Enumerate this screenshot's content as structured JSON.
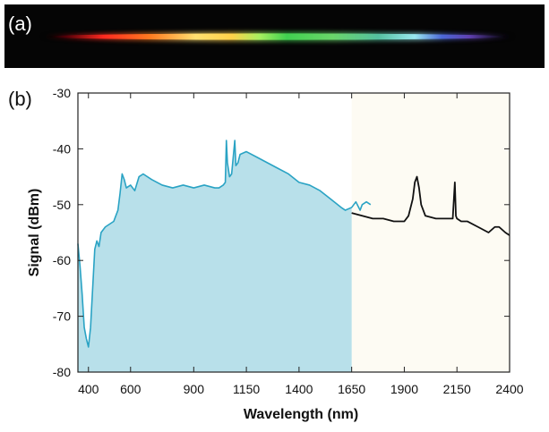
{
  "panel_a": {
    "label": "(a)"
  },
  "panel_b": {
    "label": "(b)"
  },
  "colors": {
    "fill_left": "#b8e0ea",
    "fill_right": "#fdfbf3",
    "series_visible": "#2aa3c4",
    "series_ir": "#111111",
    "frame": "#222222"
  },
  "chart_data": {
    "type": "line",
    "xlabel": "Wavelength (nm)",
    "ylabel": "Signal (dBm)",
    "xlim": [
      350,
      2400
    ],
    "ylim": [
      -80,
      -30
    ],
    "xticks": [
      400,
      600,
      900,
      1150,
      1400,
      1650,
      1900,
      2150,
      2400
    ],
    "yticks": [
      -30,
      -40,
      -50,
      -60,
      -70,
      -80
    ],
    "shaded_region_boundary_x": 1650,
    "series": [
      {
        "x": [
          350,
          360,
          370,
          380,
          390,
          400,
          410,
          420,
          430,
          440,
          450,
          460,
          470,
          480,
          500,
          520,
          540,
          550,
          560,
          570,
          580,
          600,
          620,
          640,
          660,
          700,
          750,
          800,
          850,
          900,
          950,
          1000,
          1020,
          1040,
          1050,
          1055,
          1060,
          1070,
          1080,
          1090,
          1095,
          1100,
          1110,
          1120,
          1150,
          1200,
          1250,
          1300,
          1350,
          1400,
          1450,
          1500,
          1550,
          1600,
          1620,
          1650,
          1670,
          1690,
          1700,
          1720,
          1740
        ],
        "values": [
          -57,
          -61,
          -66,
          -72,
          -74,
          -75.5,
          -72,
          -65,
          -58,
          -56.5,
          -57.5,
          -55,
          -54.5,
          -54,
          -53.5,
          -53,
          -51,
          -48,
          -44.5,
          -45.5,
          -47,
          -46.5,
          -47.5,
          -45,
          -44.5,
          -45.5,
          -46.5,
          -47,
          -46.5,
          -47,
          -46.5,
          -47,
          -47,
          -46.5,
          -46,
          -38.5,
          -42.5,
          -45,
          -44.5,
          -40.5,
          -38.5,
          -43,
          -42.5,
          -41,
          -40.5,
          -41.5,
          -42.5,
          -43.5,
          -44.5,
          -46,
          -46.5,
          -47.5,
          -49,
          -50.5,
          -51,
          -50.5,
          -49.5,
          -51,
          -50,
          -49.5,
          -50
        ]
      },
      {
        "x": [
          1650,
          1700,
          1750,
          1800,
          1850,
          1900,
          1920,
          1940,
          1950,
          1960,
          1970,
          1980,
          2000,
          2050,
          2100,
          2130,
          2140,
          2145,
          2150,
          2170,
          2200,
          2250,
          2300,
          2330,
          2350,
          2380,
          2400
        ],
        "values": [
          -51.5,
          -52,
          -52.5,
          -52.5,
          -53,
          -53,
          -52,
          -49,
          -46,
          -45,
          -47,
          -50,
          -52,
          -52.5,
          -52.5,
          -52.5,
          -46,
          -52,
          -52.5,
          -53,
          -53,
          -54,
          -55,
          -54,
          -54,
          -55,
          -55.5
        ]
      }
    ]
  }
}
